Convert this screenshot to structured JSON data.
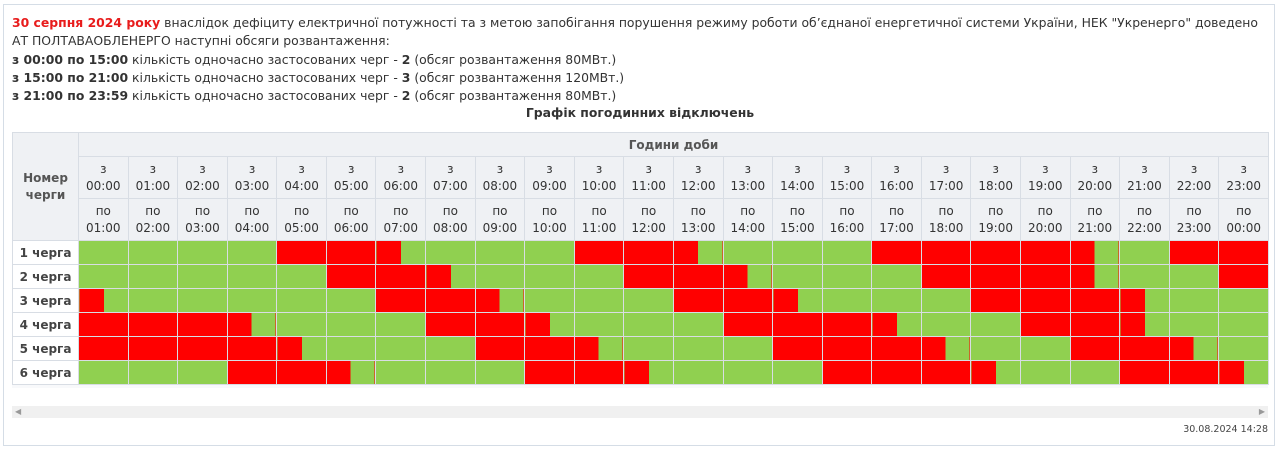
{
  "intro": {
    "date": "30 серпня 2024 року",
    "text": " внаслідок дефіциту електричної потужності та з метою запобігання порушення режиму роботи об’єднаної енергетичної системи України, НЕК \"Укренерго\" доведено АТ ПОЛТАВАОБЛЕНЕРГО наступні обсяги розвантаження:",
    "lines": [
      {
        "range": "з 00:00 по 15:00",
        "text1": " кількість одночасно застосованих черг - ",
        "count": "2",
        "text2": " (обсяг розвантаження 80МВт.)"
      },
      {
        "range": "з 15:00 по 21:00",
        "text1": " кількість одночасно застосованих черг - ",
        "count": "3",
        "text2": " (обсяг розвантаження 120МВт.)"
      },
      {
        "range": "з 21:00 по 23:59",
        "text1": " кількість одночасно застосованих черг - ",
        "count": "2",
        "text2": " (обсяг розвантаження 80МВт.)"
      }
    ]
  },
  "table": {
    "caption": "Графік погодинних відключень",
    "queue_header": "Номер черги",
    "hours_header": "Години доби",
    "from_prefix": "з",
    "to_prefix": "по",
    "from_times": [
      "00:00",
      "01:00",
      "02:00",
      "03:00",
      "04:00",
      "05:00",
      "06:00",
      "07:00",
      "08:00",
      "09:00",
      "10:00",
      "11:00",
      "12:00",
      "13:00",
      "14:00",
      "15:00",
      "16:00",
      "17:00",
      "18:00",
      "19:00",
      "20:00",
      "21:00",
      "22:00",
      "23:00"
    ],
    "to_times": [
      "01:00",
      "02:00",
      "03:00",
      "04:00",
      "05:00",
      "06:00",
      "07:00",
      "08:00",
      "09:00",
      "10:00",
      "11:00",
      "12:00",
      "13:00",
      "14:00",
      "15:00",
      "16:00",
      "17:00",
      "18:00",
      "19:00",
      "20:00",
      "21:00",
      "22:00",
      "23:00",
      "00:00"
    ],
    "status_colors": {
      "on": "#90d050",
      "off": "#ff0000"
    },
    "queues": [
      {
        "label": "1 черга",
        "off": [
          [
            4.0,
            6.5
          ],
          [
            10.0,
            12.5
          ],
          [
            16.0,
            20.5
          ],
          [
            22.0,
            24.0
          ]
        ]
      },
      {
        "label": "2 черга",
        "off": [
          [
            5.0,
            7.5
          ],
          [
            11.0,
            13.5
          ],
          [
            17.0,
            20.5
          ],
          [
            23.0,
            24.0
          ]
        ]
      },
      {
        "label": "3 черга",
        "off": [
          [
            0.0,
            0.5
          ],
          [
            6.0,
            8.5
          ],
          [
            12.0,
            14.5
          ],
          [
            18.0,
            21.5
          ]
        ]
      },
      {
        "label": "4 черга",
        "off": [
          [
            0.0,
            3.5
          ],
          [
            7.0,
            9.5
          ],
          [
            13.0,
            16.5
          ],
          [
            19.0,
            21.5
          ]
        ]
      },
      {
        "label": "5 черга",
        "off": [
          [
            0.0,
            4.5
          ],
          [
            8.0,
            10.5
          ],
          [
            14.0,
            17.5
          ],
          [
            20.0,
            22.5
          ]
        ]
      },
      {
        "label": "6 черга",
        "off": [
          [
            3.0,
            5.5
          ],
          [
            9.0,
            11.5
          ],
          [
            15.0,
            18.5
          ],
          [
            21.0,
            23.5
          ]
        ]
      }
    ]
  },
  "timestamp": "30.08.2024 14:28"
}
